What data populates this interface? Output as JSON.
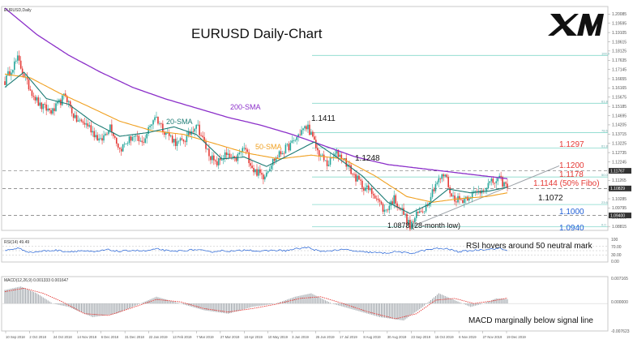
{
  "chart_data": {
    "type": "line",
    "header_label": "EURUSD,Daily",
    "title": "EURUSD Daily-Chart",
    "brand": "XM",
    "colors": {
      "bull": "#26a69a",
      "bear": "#e53935",
      "sma20": "#1a7a73",
      "sma50": "#f0a020",
      "sma200": "#8b2fc9",
      "fib": "#86d9cc",
      "trend": "#9aa0a6",
      "level_dash": "#555555",
      "red_label": "#e53935",
      "blue_label": "#1f5fd6",
      "rsi": "#1f5fd6",
      "macd_hist": "#9aa0a6",
      "macd_signal": "#e53935"
    },
    "price_axis": {
      "ylim": [
        1.0865,
        1.204
      ],
      "ticks": [
        "1.20085",
        "1.19595",
        "1.19105",
        "1.18615",
        "1.18125",
        "1.17635",
        "1.17145",
        "1.16655",
        "1.16165",
        "1.15675",
        "1.15185",
        "1.14695",
        "1.14205",
        "1.13715",
        "1.13225",
        "1.12735",
        "1.12245",
        "1.11755",
        "1.11265",
        "1.10775",
        "1.10285",
        "1.09795",
        "1.09305",
        "1.08815"
      ],
      "current_price_tag": "1.11767",
      "secondary_tag": "1.10829",
      "low_tag": "1.09400"
    },
    "date_axis": [
      "10 Sep 2018",
      "2 Oct 2018",
      "24 Oct 2018",
      "14 Nov 2018",
      "6 Dec 2018",
      "31 Dec 2018",
      "22 Jan 2019",
      "13 Feb 2019",
      "7 Mar 2019",
      "27 Mar 2019",
      "18 Apr 2019",
      "10 May 2019",
      "3 Jun 2019",
      "25 Jun 2019",
      "17 Jul 2019",
      "8 Aug 2019",
      "30 Aug 2019",
      "23 Sep 2019",
      "15 Oct 2019",
      "6 Nov 2019",
      "27 Nov 2019",
      "19 Dec 2019"
    ],
    "price_anchors": [
      [
        0,
        1.165
      ],
      [
        4,
        1.172
      ],
      [
        8,
        1.177
      ],
      [
        14,
        1.164
      ],
      [
        22,
        1.152
      ],
      [
        30,
        1.149
      ],
      [
        38,
        1.158
      ],
      [
        44,
        1.145
      ],
      [
        52,
        1.142
      ],
      [
        60,
        1.133
      ],
      [
        66,
        1.142
      ],
      [
        72,
        1.129
      ],
      [
        80,
        1.136
      ],
      [
        86,
        1.132
      ],
      [
        94,
        1.147
      ],
      [
        100,
        1.139
      ],
      [
        108,
        1.132
      ],
      [
        114,
        1.135
      ],
      [
        120,
        1.143
      ],
      [
        126,
        1.13
      ],
      [
        132,
        1.121
      ],
      [
        138,
        1.126
      ],
      [
        144,
        1.123
      ],
      [
        150,
        1.13
      ],
      [
        156,
        1.118
      ],
      [
        162,
        1.115
      ],
      [
        168,
        1.123
      ],
      [
        174,
        1.128
      ],
      [
        180,
        1.132
      ],
      [
        186,
        1.139
      ],
      [
        190,
        1.1411
      ],
      [
        196,
        1.128
      ],
      [
        202,
        1.121
      ],
      [
        208,
        1.127
      ],
      [
        212,
        1.1248
      ],
      [
        218,
        1.116
      ],
      [
        224,
        1.11
      ],
      [
        232,
        1.105
      ],
      [
        238,
        1.096
      ],
      [
        244,
        1.103
      ],
      [
        250,
        1.095
      ],
      [
        254,
        1.0878
      ],
      [
        258,
        1.094
      ],
      [
        264,
        1.099
      ],
      [
        270,
        1.111
      ],
      [
        276,
        1.116
      ],
      [
        280,
        1.104
      ],
      [
        286,
        1.102
      ],
      [
        292,
        1.105
      ],
      [
        298,
        1.107
      ],
      [
        304,
        1.111
      ],
      [
        310,
        1.113
      ],
      [
        315,
        1.109
      ]
    ],
    "sma20_anchors": [
      [
        0,
        1.162
      ],
      [
        12,
        1.17
      ],
      [
        26,
        1.156
      ],
      [
        40,
        1.153
      ],
      [
        56,
        1.143
      ],
      [
        72,
        1.136
      ],
      [
        90,
        1.138
      ],
      [
        106,
        1.141
      ],
      [
        120,
        1.137
      ],
      [
        136,
        1.124
      ],
      [
        150,
        1.125
      ],
      [
        164,
        1.12
      ],
      [
        178,
        1.126
      ],
      [
        194,
        1.133
      ],
      [
        208,
        1.125
      ],
      [
        224,
        1.115
      ],
      [
        240,
        1.101
      ],
      [
        254,
        1.095
      ],
      [
        266,
        1.1
      ],
      [
        278,
        1.108
      ],
      [
        292,
        1.106
      ],
      [
        304,
        1.107
      ],
      [
        315,
        1.109
      ]
    ],
    "sma50_anchors": [
      [
        0,
        1.169
      ],
      [
        16,
        1.167
      ],
      [
        34,
        1.159
      ],
      [
        52,
        1.152
      ],
      [
        72,
        1.144
      ],
      [
        92,
        1.139
      ],
      [
        112,
        1.137
      ],
      [
        132,
        1.132
      ],
      [
        152,
        1.127
      ],
      [
        172,
        1.124
      ],
      [
        192,
        1.126
      ],
      [
        212,
        1.124
      ],
      [
        232,
        1.115
      ],
      [
        252,
        1.104
      ],
      [
        268,
        1.101
      ],
      [
        286,
        1.103
      ],
      [
        302,
        1.104
      ],
      [
        315,
        1.106
      ]
    ],
    "sma200_anchors": [
      [
        0,
        1.204
      ],
      [
        20,
        1.19
      ],
      [
        40,
        1.179
      ],
      [
        60,
        1.17
      ],
      [
        80,
        1.162
      ],
      [
        100,
        1.156
      ],
      [
        120,
        1.151
      ],
      [
        140,
        1.146
      ],
      [
        160,
        1.142
      ],
      [
        180,
        1.137
      ],
      [
        200,
        1.131
      ],
      [
        220,
        1.125
      ],
      [
        240,
        1.121
      ],
      [
        260,
        1.119
      ],
      [
        280,
        1.117
      ],
      [
        300,
        1.115
      ],
      [
        315,
        1.1135
      ]
    ],
    "levels_dashed": [
      1.1176,
      1.1083,
      1.094
    ],
    "fib_levels": [
      {
        "value": 1.1789,
        "tag": "100.0"
      },
      {
        "value": 1.1535,
        "tag": "61.8"
      },
      {
        "value": 1.1379,
        "tag": "78.6"
      },
      {
        "value": 1.1297,
        "tag": "61.8"
      },
      {
        "value": 1.1144,
        "tag": "50.0"
      },
      {
        "value": 1.0998,
        "tag": "23.6"
      },
      {
        "value": 1.088,
        "tag": "0.0"
      }
    ],
    "trendline": {
      "from": [
        254,
        1.0878
      ],
      "to": [
        315,
        1.109
      ]
    },
    "annotations": {
      "sma200": "200-SMA",
      "sma20": "20-SMA",
      "sma50": "50-SMA",
      "peak1": "1.1411",
      "peak2": "1.1248",
      "low": "1.0878 (28-month low)",
      "lvl_1297": "1.1297",
      "lvl_1200": "1.1200",
      "lvl_1178": "1.1178",
      "lvl_1144": "1.1144 (50% Fibo)",
      "lvl_1072": "1.1072",
      "lvl_1000": "1.1000",
      "lvl_0940": "1.0940"
    },
    "rsi": {
      "label": "RSI(14) 49.49",
      "ticks": [
        "100",
        "70.00",
        "30.00",
        "0.00"
      ],
      "ylim": [
        0,
        100
      ],
      "annotation": "RSI hovers around 50 neutral mark",
      "anchors": [
        [
          0,
          50
        ],
        [
          8,
          62
        ],
        [
          16,
          42
        ],
        [
          24,
          48
        ],
        [
          32,
          52
        ],
        [
          40,
          45
        ],
        [
          48,
          50
        ],
        [
          56,
          43
        ],
        [
          64,
          55
        ],
        [
          72,
          46
        ],
        [
          80,
          52
        ],
        [
          88,
          48
        ],
        [
          96,
          58
        ],
        [
          104,
          46
        ],
        [
          112,
          50
        ],
        [
          120,
          55
        ],
        [
          128,
          44
        ],
        [
          136,
          50
        ],
        [
          144,
          47
        ],
        [
          152,
          55
        ],
        [
          160,
          46
        ],
        [
          168,
          52
        ],
        [
          176,
          50
        ],
        [
          184,
          60
        ],
        [
          190,
          65
        ],
        [
          198,
          45
        ],
        [
          206,
          52
        ],
        [
          214,
          55
        ],
        [
          222,
          44
        ],
        [
          230,
          42
        ],
        [
          238,
          38
        ],
        [
          246,
          46
        ],
        [
          254,
          36
        ],
        [
          262,
          50
        ],
        [
          270,
          60
        ],
        [
          278,
          58
        ],
        [
          284,
          45
        ],
        [
          292,
          50
        ],
        [
          300,
          56
        ],
        [
          306,
          58
        ],
        [
          310,
          62
        ],
        [
          315,
          49
        ]
      ]
    },
    "macd": {
      "label": "MACD(12,26,9) 0.001333 0.001647",
      "ticks": [
        "0.007165",
        "0.000000",
        "-0.007623"
      ],
      "ylim": [
        -0.0076,
        0.0072
      ],
      "annotation": "MACD marginally below signal line",
      "hist_anchors": [
        [
          0,
          0.004
        ],
        [
          10,
          0.005
        ],
        [
          20,
          0.003
        ],
        [
          30,
          0.0
        ],
        [
          40,
          -0.001
        ],
        [
          55,
          -0.004
        ],
        [
          70,
          -0.003
        ],
        [
          85,
          0.0
        ],
        [
          95,
          0.002
        ],
        [
          110,
          0.0
        ],
        [
          125,
          -0.002
        ],
        [
          140,
          -0.003
        ],
        [
          155,
          -0.001
        ],
        [
          170,
          0.0
        ],
        [
          182,
          0.002
        ],
        [
          192,
          0.003
        ],
        [
          205,
          0.0
        ],
        [
          220,
          -0.002
        ],
        [
          235,
          -0.004
        ],
        [
          250,
          -0.005
        ],
        [
          262,
          -0.001
        ],
        [
          272,
          0.003
        ],
        [
          282,
          0.001
        ],
        [
          292,
          -0.001
        ],
        [
          300,
          0.0
        ],
        [
          308,
          0.0015
        ],
        [
          315,
          0.0013
        ]
      ],
      "signal_anchors": [
        [
          0,
          0.0035
        ],
        [
          12,
          0.0045
        ],
        [
          24,
          0.003
        ],
        [
          36,
          0.0005
        ],
        [
          50,
          -0.003
        ],
        [
          65,
          -0.0035
        ],
        [
          80,
          -0.0012
        ],
        [
          95,
          0.0012
        ],
        [
          110,
          0.0005
        ],
        [
          125,
          -0.0015
        ],
        [
          140,
          -0.0025
        ],
        [
          155,
          -0.0015
        ],
        [
          170,
          -0.0002
        ],
        [
          185,
          0.0015
        ],
        [
          198,
          0.002
        ],
        [
          212,
          0.0
        ],
        [
          228,
          -0.0025
        ],
        [
          245,
          -0.0045
        ],
        [
          258,
          -0.003
        ],
        [
          270,
          0.001
        ],
        [
          282,
          0.0015
        ],
        [
          294,
          0.0
        ],
        [
          306,
          0.0008
        ],
        [
          315,
          0.0016
        ]
      ]
    }
  }
}
